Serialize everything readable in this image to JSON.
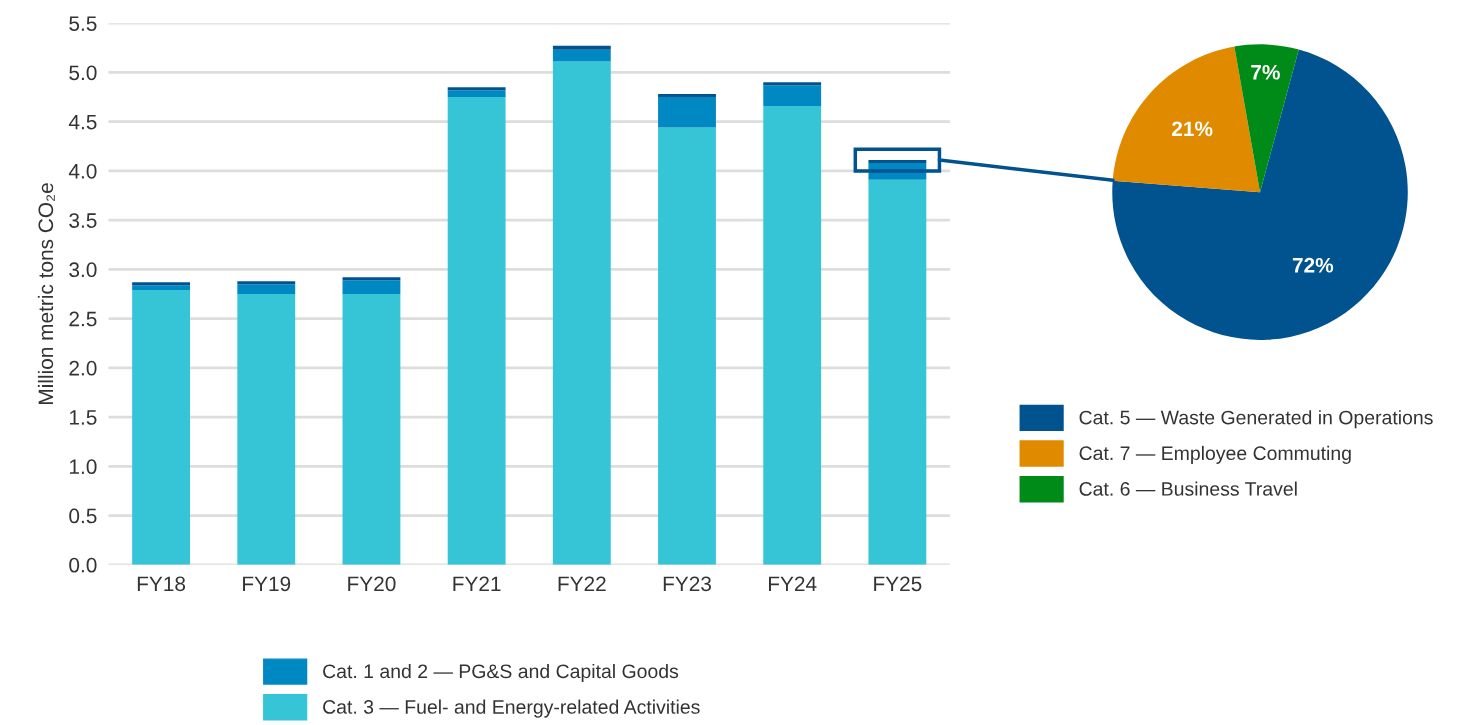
{
  "chart_data": [
    {
      "type": "bar",
      "stacked": true,
      "ylabel": "Million metric tons CO₂e",
      "categories": [
        "FY18",
        "FY19",
        "FY20",
        "FY21",
        "FY22",
        "FY23",
        "FY24",
        "FY25"
      ],
      "series": [
        {
          "name": "Cat. 3 — Fuel- and Energy-related Activities",
          "color": "#35c5d7",
          "values": [
            2.79,
            2.75,
            2.75,
            4.75,
            5.11,
            4.44,
            4.66,
            3.91
          ]
        },
        {
          "name": "Cat. 1 and 2 — PG&S and Capital Goods",
          "color": "#0088c2",
          "values": [
            0.05,
            0.1,
            0.14,
            0.07,
            0.12,
            0.31,
            0.21,
            0.17
          ]
        },
        {
          "color": "#00538f",
          "values": [
            0.03,
            0.03,
            0.03,
            0.03,
            0.04,
            0.03,
            0.03,
            0.03
          ]
        }
      ],
      "ylim": [
        0,
        5.5
      ],
      "yticks": [
        {
          "value": 0,
          "label": "0.0"
        },
        {
          "value": 0.5,
          "label": "0.5"
        },
        {
          "value": 1,
          "label": "1.0"
        },
        {
          "value": 1.5,
          "label": "1.5"
        },
        {
          "value": 2,
          "label": "2.0"
        },
        {
          "value": 2.5,
          "label": "2.5"
        },
        {
          "value": 3,
          "label": "3.0"
        },
        {
          "value": 3.5,
          "label": "3.5"
        },
        {
          "value": 4,
          "label": "4.0"
        },
        {
          "value": 4.5,
          "label": "4.5"
        },
        {
          "value": 5,
          "label": "5.0"
        },
        {
          "value": 5.5,
          "label": "5.5"
        }
      ],
      "grid": "y",
      "legend": "bottom"
    },
    {
      "type": "pie",
      "categories": [
        "Cat. 5 — Waste Generated in Operations",
        "Cat. 7 — Employee Commuting",
        "Cat. 6 — Business Travel"
      ],
      "values": [
        72,
        21,
        7
      ],
      "colors": [
        "#00538f",
        "#e08a00",
        "#008a17"
      ],
      "value_labels": [
        "72%",
        "21%",
        "7%"
      ],
      "legend": "bottom"
    }
  ]
}
